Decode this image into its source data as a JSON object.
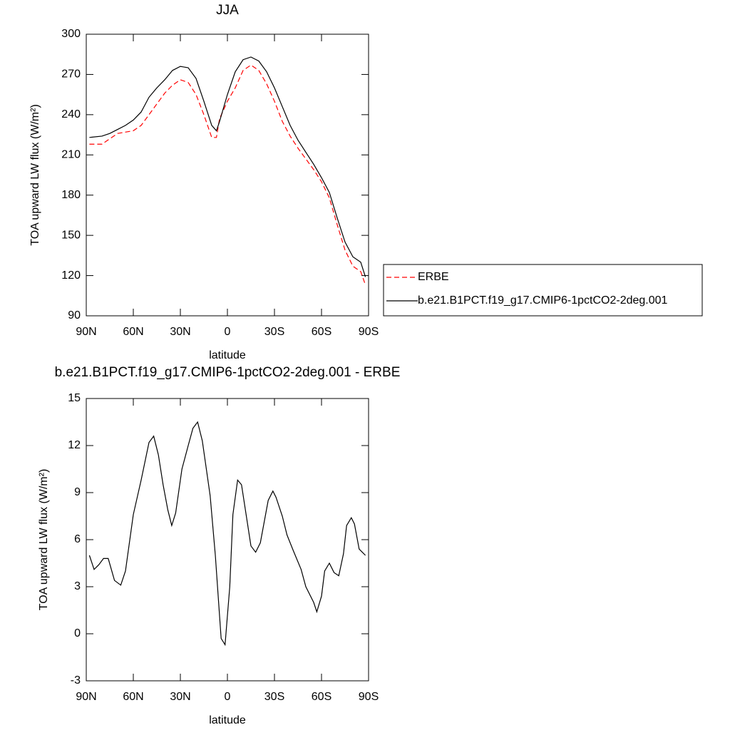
{
  "chart_data": [
    {
      "type": "line",
      "title": "JJA",
      "xlabel": "latitude",
      "ylabel": "TOA upward LW flux (W/m²)",
      "xlim": [
        90,
        -90
      ],
      "xticks": [
        {
          "value": 90,
          "label": "90N"
        },
        {
          "value": 60,
          "label": "60N"
        },
        {
          "value": 30,
          "label": "30N"
        },
        0,
        {
          "value": -30,
          "label": "30S"
        },
        {
          "value": -60,
          "label": "60S"
        },
        {
          "value": -90,
          "label": "90S"
        }
      ],
      "ylim": [
        90,
        300
      ],
      "yticks": [
        90,
        120,
        150,
        180,
        210,
        240,
        270,
        300
      ],
      "legend": "right",
      "x": [
        88,
        80,
        75,
        70,
        65,
        60,
        55,
        50,
        45,
        40,
        35,
        30,
        25,
        20,
        15,
        10,
        7,
        5,
        0,
        -5,
        -10,
        -15,
        -20,
        -25,
        -30,
        -35,
        -40,
        -45,
        -50,
        -55,
        -60,
        -65,
        -70,
        -75,
        -80,
        -85,
        -88
      ],
      "series": [
        {
          "name": "ERBE",
          "color": "#ff0000",
          "linestyle": "dashed",
          "values": [
            218,
            218,
            222,
            226,
            227,
            228,
            232,
            240,
            248,
            256,
            262,
            266,
            264,
            255,
            240,
            223,
            223,
            237,
            250,
            260,
            273,
            277,
            273,
            263,
            250,
            235,
            224,
            215,
            207,
            199,
            190,
            178,
            158,
            139,
            127,
            123,
            113
          ]
        },
        {
          "name": "b.e21.B1PCT.f19_g17.CMIP6-1pctCO2-2deg.001",
          "color": "#000000",
          "linestyle": "solid",
          "values": [
            223,
            224,
            226,
            229,
            232,
            236,
            242,
            253,
            260,
            266,
            273,
            276,
            275,
            267,
            250,
            232,
            228,
            235,
            255,
            272,
            281,
            283,
            280,
            272,
            260,
            246,
            232,
            221,
            212,
            203,
            193,
            182,
            163,
            145,
            134,
            130,
            119
          ]
        }
      ]
    },
    {
      "type": "line",
      "title": "b.e21.B1PCT.f19_g17.CMIP6-1pctCO2-2deg.001 - ERBE",
      "xlabel": "latitude",
      "ylabel": "TOA upward LW flux (W/m²)",
      "xlim": [
        90,
        -90
      ],
      "xticks": [
        {
          "value": 90,
          "label": "90N"
        },
        {
          "value": 60,
          "label": "60N"
        },
        {
          "value": 30,
          "label": "30N"
        },
        0,
        {
          "value": -30,
          "label": "30S"
        },
        {
          "value": -60,
          "label": "60S"
        },
        {
          "value": -90,
          "label": "90S"
        }
      ],
      "ylim": [
        -3,
        15
      ],
      "yticks": [
        -3,
        0,
        3,
        6,
        9,
        12,
        15
      ],
      "x": [
        88,
        85,
        82,
        79,
        76,
        72,
        68,
        65,
        60,
        55,
        50,
        47,
        44,
        41,
        38,
        35.5,
        33,
        29,
        25,
        22,
        19,
        16,
        11,
        7.7,
        4,
        1.5,
        -1.5,
        -3.5,
        -6.5,
        -9,
        -15,
        -18,
        -21,
        -26,
        -29,
        -31,
        -35,
        -38,
        -42,
        -47,
        -50,
        -55,
        -57,
        -60,
        -62,
        -65,
        -68,
        -71,
        -74,
        -76,
        -79,
        -81,
        -84,
        -88
      ],
      "series": [
        {
          "color": "#000000",
          "linestyle": "solid",
          "values": [
            5.0,
            4.1,
            4.4,
            4.8,
            4.8,
            3.4,
            3.1,
            4.0,
            7.6,
            9.8,
            12.2,
            12.6,
            11.4,
            9.5,
            7.9,
            6.9,
            7.7,
            10.5,
            12.0,
            13.1,
            13.5,
            12.3,
            8.8,
            5.0,
            -0.3,
            -0.7,
            3.0,
            7.6,
            9.8,
            9.5,
            5.6,
            5.2,
            5.8,
            8.5,
            9.1,
            8.7,
            7.5,
            6.3,
            5.3,
            4.1,
            3.0,
            2.0,
            1.4,
            2.4,
            4.0,
            4.5,
            3.9,
            3.7,
            5.1,
            6.9,
            7.4,
            7.0,
            5.4,
            5.0
          ]
        }
      ]
    }
  ]
}
